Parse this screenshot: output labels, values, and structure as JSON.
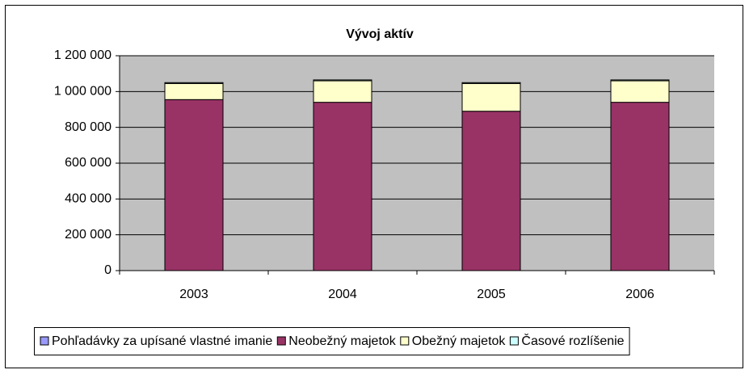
{
  "chart_data": {
    "type": "bar",
    "stacked": true,
    "title": "Vývoj aktív",
    "categories": [
      "2003",
      "2004",
      "2005",
      "2006"
    ],
    "series": [
      {
        "name": "Pohľadávky za upísané vlastné imanie",
        "color": "#9999ff",
        "values": [
          0,
          0,
          0,
          0
        ]
      },
      {
        "name": "Neobežný majetok",
        "color": "#993366",
        "values": [
          955000,
          940000,
          890000,
          940000
        ]
      },
      {
        "name": "Obežný majetok",
        "color": "#ffffcc",
        "values": [
          90000,
          120000,
          155000,
          120000
        ]
      },
      {
        "name": "Časové rozlíšenie",
        "color": "#ccffff",
        "values": [
          5000,
          5000,
          5000,
          5000
        ]
      }
    ],
    "ylim": [
      0,
      1200000
    ],
    "yticks": [
      0,
      {
        "value": 200000,
        "label": "200 000"
      },
      {
        "value": 400000,
        "label": "400 000"
      },
      {
        "value": 600000,
        "label": "600 000"
      },
      {
        "value": 800000,
        "label": "800 000"
      },
      {
        "value": 1000000,
        "label": "1 000 000"
      },
      {
        "value": 1200000,
        "label": "1 200 000"
      }
    ],
    "grid": true,
    "legend": "bottom"
  }
}
